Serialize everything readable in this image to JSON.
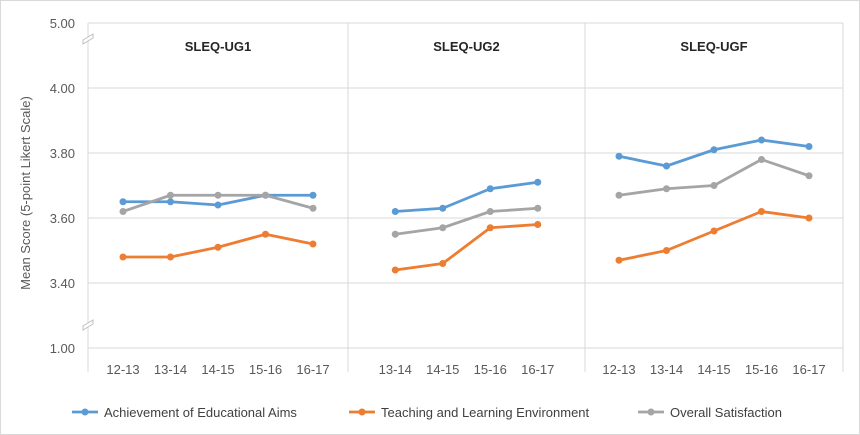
{
  "chart_data": {
    "type": "line",
    "ylabel": "Mean Score (5-point Likert Scale)",
    "y_ticks": [
      "5.00",
      "4.00",
      "3.80",
      "3.60",
      "3.40",
      "1.00"
    ],
    "axis_break": true,
    "grid": true,
    "legend_position": "bottom",
    "series_meta": [
      {
        "name": "Achievement of Educational Aims",
        "color": "#5b9bd5"
      },
      {
        "name": "Teaching and Learning Environment",
        "color": "#ed7d31"
      },
      {
        "name": "Overall Satisfaction",
        "color": "#a5a5a5"
      }
    ],
    "panels": [
      {
        "title": "SLEQ-UG1",
        "categories": [
          "12-13",
          "13-14",
          "14-15",
          "15-16",
          "16-17"
        ],
        "series": [
          {
            "name": "Achievement of Educational Aims",
            "values": [
              3.65,
              3.65,
              3.64,
              3.67,
              3.67
            ]
          },
          {
            "name": "Teaching and Learning Environment",
            "values": [
              3.48,
              3.48,
              3.51,
              3.55,
              3.52
            ]
          },
          {
            "name": "Overall Satisfaction",
            "values": [
              3.62,
              3.67,
              3.67,
              3.67,
              3.63
            ]
          }
        ]
      },
      {
        "title": "SLEQ-UG2",
        "categories": [
          "13-14",
          "14-15",
          "15-16",
          "16-17"
        ],
        "series": [
          {
            "name": "Achievement of Educational Aims",
            "values": [
              3.62,
              3.63,
              3.69,
              3.71
            ]
          },
          {
            "name": "Teaching and Learning Environment",
            "values": [
              3.44,
              3.46,
              3.57,
              3.58
            ]
          },
          {
            "name": "Overall Satisfaction",
            "values": [
              3.55,
              3.57,
              3.62,
              3.63
            ]
          }
        ]
      },
      {
        "title": "SLEQ-UGF",
        "categories": [
          "12-13",
          "13-14",
          "14-15",
          "15-16",
          "16-17"
        ],
        "series": [
          {
            "name": "Achievement of Educational Aims",
            "values": [
              3.79,
              3.76,
              3.81,
              3.84,
              3.82
            ]
          },
          {
            "name": "Teaching and Learning Environment",
            "values": [
              3.47,
              3.5,
              3.56,
              3.62,
              3.6
            ]
          },
          {
            "name": "Overall Satisfaction",
            "values": [
              3.67,
              3.69,
              3.7,
              3.78,
              3.73
            ]
          }
        ]
      }
    ]
  }
}
